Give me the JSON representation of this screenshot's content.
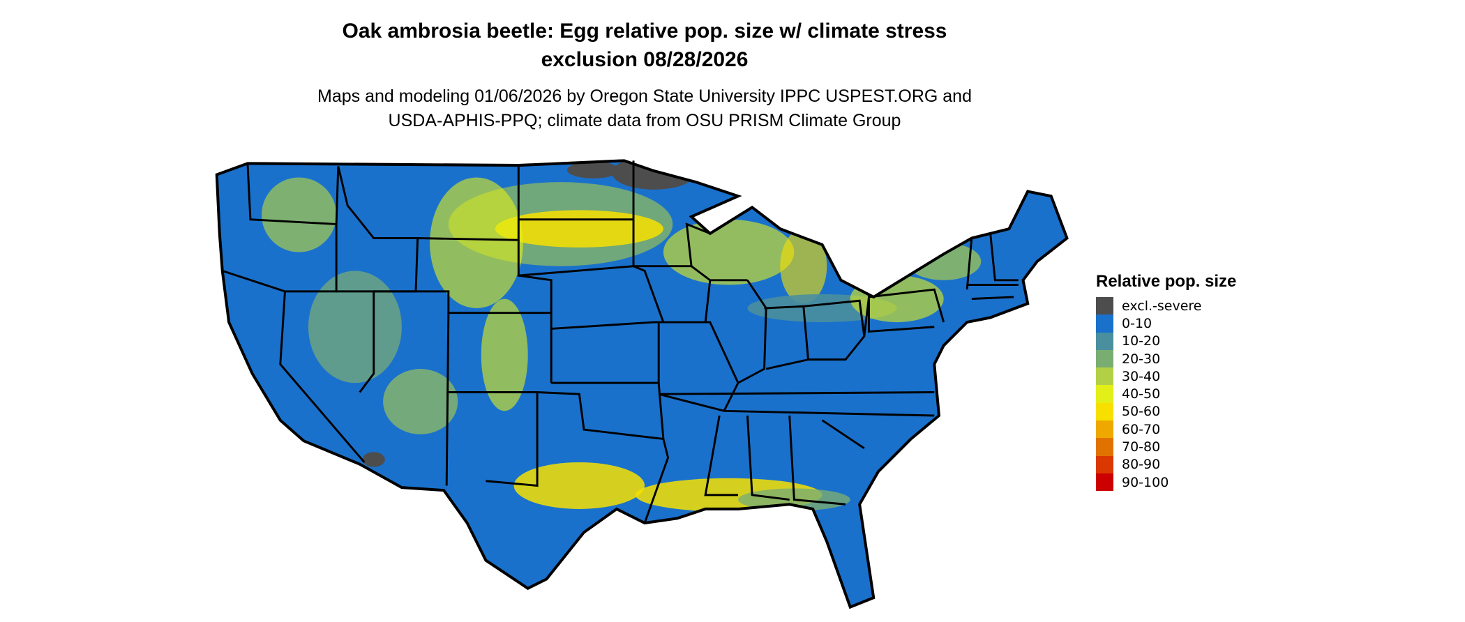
{
  "title": {
    "line1": "Oak ambrosia beetle: Egg relative pop. size w/ climate stress",
    "line2": "exclusion 08/28/2026"
  },
  "subtitle": {
    "line1": "Maps and modeling 01/06/2026 by Oregon State University IPPC USPEST.ORG and",
    "line2": "USDA-APHIS-PPQ; climate data from OSU PRISM Climate Group"
  },
  "legend": {
    "title": "Relative pop. size",
    "items": [
      {
        "label": "excl.-severe",
        "color": "#4d4d4d"
      },
      {
        "label": "0-10",
        "color": "#1a71cc"
      },
      {
        "label": "10-20",
        "color": "#4a8f9e"
      },
      {
        "label": "20-30",
        "color": "#7aad72"
      },
      {
        "label": "30-40",
        "color": "#b2d046"
      },
      {
        "label": "40-50",
        "color": "#e2ef18"
      },
      {
        "label": "50-60",
        "color": "#f7e000"
      },
      {
        "label": "60-70",
        "color": "#efa800"
      },
      {
        "label": "70-80",
        "color": "#e27200"
      },
      {
        "label": "80-90",
        "color": "#da3800"
      },
      {
        "label": "90-100",
        "color": "#cc0000"
      }
    ]
  }
}
